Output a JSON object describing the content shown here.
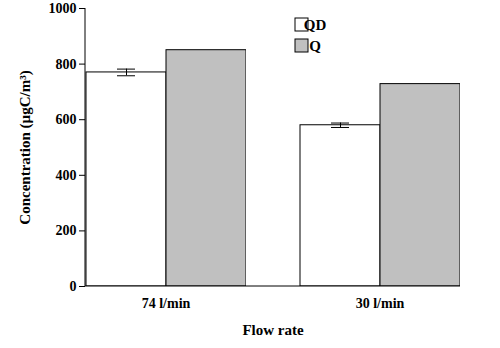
{
  "chart_data": {
    "type": "bar",
    "x_label": "Flow rate",
    "y_label": "Concentration (µgC/m³)",
    "categories": [
      "74 l/min",
      "30 l/min"
    ],
    "series": [
      {
        "name": "QD",
        "color": "#ffffff",
        "values": [
          770,
          580
        ],
        "errors": [
          12,
          8
        ]
      },
      {
        "name": "Q",
        "color": "#c0c0c0",
        "values": [
          850,
          728
        ]
      }
    ],
    "ylim": [
      0,
      1000
    ],
    "yticks": [
      0,
      200,
      400,
      600,
      800,
      1000
    ],
    "grid": false,
    "legend": "top"
  }
}
